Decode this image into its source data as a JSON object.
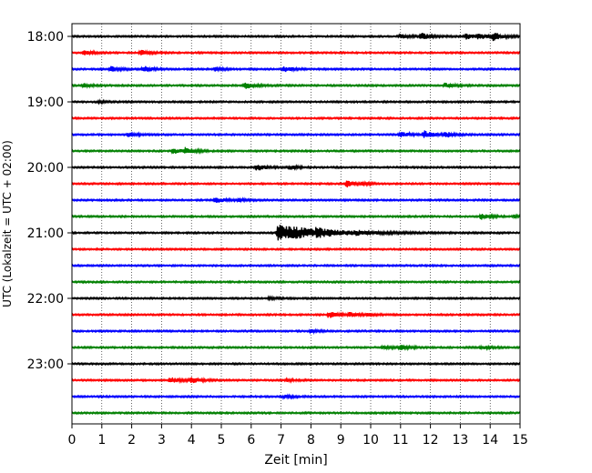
{
  "chart_data": {
    "type": "line",
    "subtype": "helicorder-seismogram",
    "xlabel": "Zeit  [min]",
    "ylabel": "UTC (Lokalzeit = UTC + 02:00)",
    "xlim": [
      0,
      15
    ],
    "x_ticks": [
      0,
      1,
      2,
      3,
      4,
      5,
      6,
      7,
      8,
      9,
      10,
      11,
      12,
      13,
      14,
      15
    ],
    "x_tick_labels": [
      "0",
      "1",
      "2",
      "3",
      "4",
      "5",
      "6",
      "7",
      "8",
      "9",
      "10",
      "11",
      "12",
      "13",
      "14",
      "15"
    ],
    "y_tick_labels": [
      "18:00",
      "19:00",
      "20:00",
      "21:00",
      "22:00",
      "23:00"
    ],
    "vertical_grid": "dotted",
    "trace_interval_min": 15,
    "trace_colors": [
      "#000000",
      "#ff0000",
      "#0000ff",
      "#008000"
    ],
    "traces": [
      {
        "start": "18:00",
        "events": [
          [
            11.0,
            0.4
          ],
          [
            11.7,
            0.6
          ],
          [
            13.2,
            0.5
          ],
          [
            13.6,
            0.5
          ],
          [
            14.1,
            0.7
          ]
        ]
      },
      {
        "start": "18:15",
        "events": [
          [
            0.4,
            0.5
          ],
          [
            2.3,
            0.5
          ]
        ]
      },
      {
        "start": "18:30",
        "events": [
          [
            1.3,
            0.5
          ],
          [
            2.4,
            0.6
          ],
          [
            4.8,
            0.3
          ],
          [
            7.1,
            0.5
          ]
        ]
      },
      {
        "start": "18:45",
        "events": [
          [
            0.4,
            0.3
          ],
          [
            5.8,
            0.6
          ],
          [
            12.5,
            0.4
          ]
        ]
      },
      {
        "start": "19:00",
        "events": [
          [
            0.9,
            0.2
          ]
        ]
      },
      {
        "start": "19:15",
        "events": []
      },
      {
        "start": "19:30",
        "events": [
          [
            1.9,
            0.4
          ],
          [
            11.0,
            0.5
          ],
          [
            11.8,
            0.7
          ],
          [
            12.5,
            0.5
          ]
        ]
      },
      {
        "start": "19:45",
        "events": [
          [
            3.4,
            0.5
          ],
          [
            3.8,
            0.6
          ]
        ]
      },
      {
        "start": "20:00",
        "events": [
          [
            6.2,
            0.6
          ],
          [
            7.3,
            0.3
          ]
        ]
      },
      {
        "start": "20:15",
        "events": [
          [
            9.2,
            0.6
          ],
          [
            9.7,
            0.2
          ]
        ]
      },
      {
        "start": "20:30",
        "events": [
          [
            4.8,
            0.6
          ],
          [
            5.6,
            0.2
          ]
        ]
      },
      {
        "start": "20:45",
        "events": [
          [
            13.7,
            0.5
          ],
          [
            14.8,
            0.2
          ]
        ]
      },
      {
        "start": "21:00",
        "events": [
          [
            6.9,
            1.6
          ],
          [
            8.2,
            0.6
          ],
          [
            9.5,
            0.3
          ]
        ]
      },
      {
        "start": "21:15",
        "events": []
      },
      {
        "start": "21:30",
        "events": []
      },
      {
        "start": "21:45",
        "events": []
      },
      {
        "start": "22:00",
        "events": [
          [
            6.6,
            0.2
          ]
        ]
      },
      {
        "start": "22:15",
        "events": [
          [
            8.6,
            0.6
          ],
          [
            9.3,
            0.4
          ],
          [
            9.9,
            0.2
          ]
        ]
      },
      {
        "start": "22:30",
        "events": [
          [
            8.0,
            0.2
          ]
        ]
      },
      {
        "start": "22:45",
        "events": [
          [
            10.4,
            0.3
          ],
          [
            11.0,
            0.4
          ],
          [
            13.7,
            0.3
          ]
        ]
      },
      {
        "start": "23:00",
        "events": []
      },
      {
        "start": "23:15",
        "events": [
          [
            3.3,
            0.6
          ],
          [
            4.0,
            0.5
          ],
          [
            7.2,
            0.2
          ]
        ]
      },
      {
        "start": "23:30",
        "events": [
          [
            7.1,
            0.3
          ]
        ]
      },
      {
        "start": "23:45",
        "events": []
      }
    ]
  }
}
